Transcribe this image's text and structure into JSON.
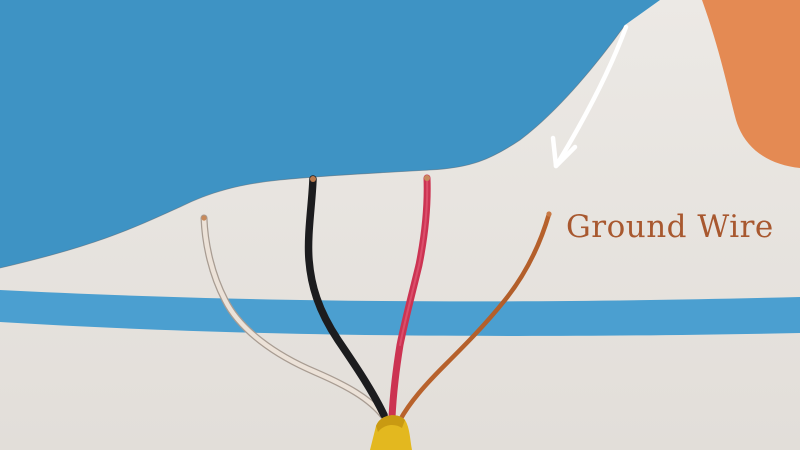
{
  "callout": {
    "label": "Ground Wire",
    "label_color": "#a8582f",
    "arrow_color": "#ffffff"
  },
  "colors": {
    "background": "#e9e6e2",
    "blue_panel": "#3e93c4",
    "blue_stripe": "#4b9fd0",
    "orange_corner": "#e48a53",
    "cable_jacket": "#e3b81f",
    "wire_white": "#e8ddd4",
    "wire_black": "#1c1c1e",
    "wire_red": "#cc3352",
    "wire_ground_copper": "#b8622c"
  }
}
